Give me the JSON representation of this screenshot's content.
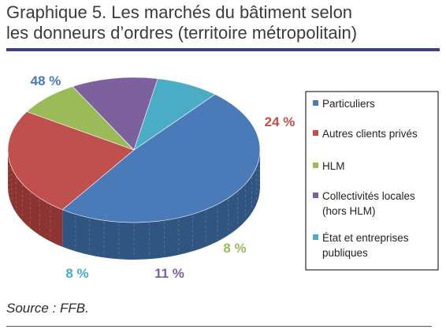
{
  "title_line1": "Graphique 5. Les marchés du bâtiment selon",
  "title_line2": "les donneurs d’ordres (territoire métropolitain)",
  "source": "Source : FFB.",
  "chart_data": {
    "type": "pie",
    "title": "Graphique 5. Les marchés du bâtiment selon les donneurs d’ordres (territoire métropolitain)",
    "categories": [
      "Particuliers",
      "Autres clients privés",
      "HLM",
      "Collectivités locales (hors  HLM)",
      "État et entreprises publiques"
    ],
    "legend_lines": [
      [
        "Particuliers"
      ],
      [
        "Autres clients privés"
      ],
      [
        "HLM"
      ],
      [
        "Collectivités locales",
        "(hors  HLM)"
      ],
      [
        "État et entreprises",
        "publiques"
      ]
    ],
    "values": [
      48,
      24,
      8,
      11,
      8
    ],
    "labels": [
      "48 %",
      "24 %",
      "8 %",
      "11 %",
      "8 %"
    ],
    "colors": [
      "#4a7ab8",
      "#c0504d",
      "#9bbb59",
      "#7c619e",
      "#4bacc6"
    ],
    "side_colors": [
      "#2f5580",
      "#8c3431",
      "#6d873c",
      "#574370",
      "#2f7b8f"
    ],
    "legend_position": "right"
  }
}
